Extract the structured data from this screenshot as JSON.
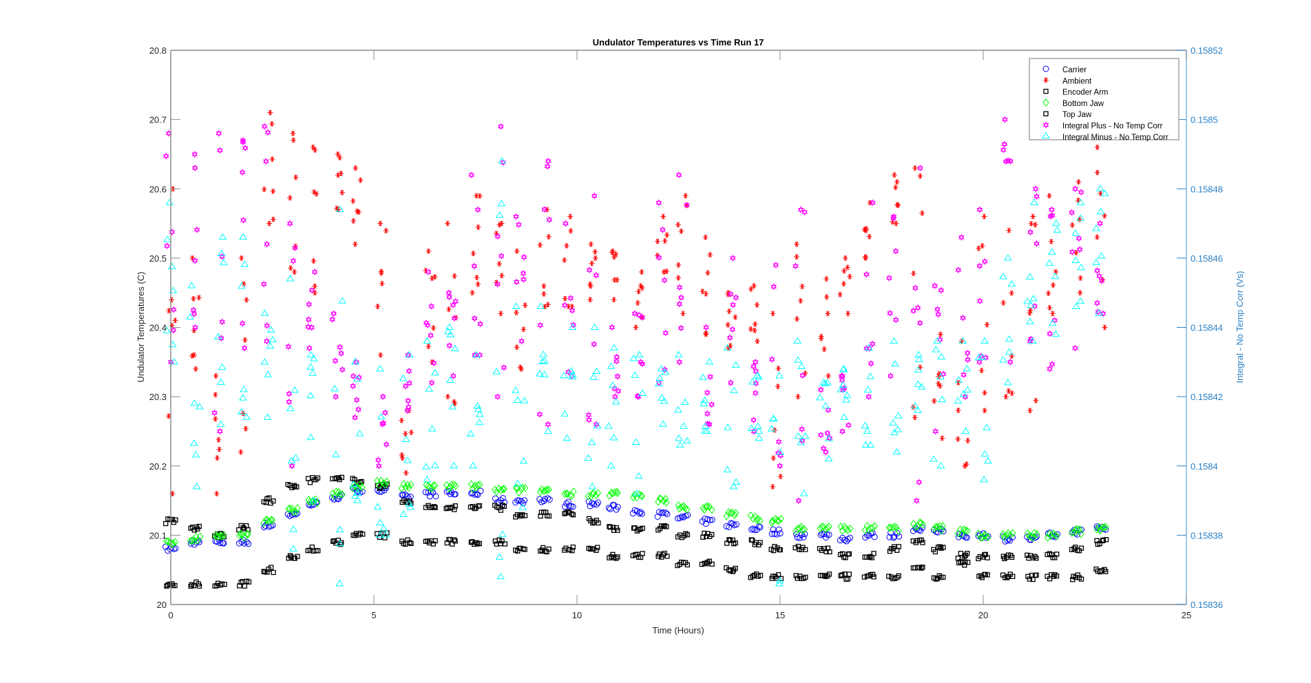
{
  "chart_data": {
    "type": "scatter",
    "title": "Undulator Temperatures vs Time Run 17",
    "xlabel": "Time (Hours)",
    "ylabel": "Undulator Temperatures (C)",
    "ylabel_right": "Integral -  No Temp Corr (Vs)",
    "xlim": [
      0,
      25
    ],
    "ylim": [
      20,
      20.8
    ],
    "ylim_right": [
      0.15836,
      0.15852
    ],
    "xticks": [
      "0",
      "5",
      "10",
      "15",
      "20",
      "25"
    ],
    "yticks": [
      "20",
      "20.1",
      "20.2",
      "20.3",
      "20.4",
      "20.5",
      "20.6",
      "20.7",
      "20.8"
    ],
    "yticks_right": [
      "0.15836",
      "0.15838",
      "0.1584",
      "0.15842",
      "0.15844",
      "0.15846",
      "0.15848",
      "0.1585",
      "0.15852"
    ],
    "grid": false,
    "legend_position": "top-right",
    "colors": {
      "carrier": "#0000ff",
      "ambient": "#ff0000",
      "encoder": "#000000",
      "bottom": "#00ff00",
      "top": "#000000",
      "plus": "#ff00ff",
      "minus": "#00ffff",
      "right_axis": "#2b7fc2"
    },
    "x": [
      0,
      0.6,
      1.2,
      1.8,
      2.4,
      3.0,
      3.5,
      4.1,
      4.6,
      5.2,
      5.8,
      6.4,
      6.9,
      7.5,
      8.1,
      8.6,
      9.2,
      9.8,
      10.4,
      10.9,
      11.5,
      12.1,
      12.6,
      13.2,
      13.8,
      14.4,
      14.9,
      15.5,
      16.1,
      16.6,
      17.2,
      17.8,
      18.4,
      18.9,
      19.5,
      20.0,
      20.6,
      21.2,
      21.7,
      22.3,
      22.9
    ],
    "series": [
      {
        "name": "Carrier",
        "axis": "left",
        "marker": "circle",
        "values": [
          20.08,
          20.09,
          20.09,
          20.09,
          20.115,
          20.13,
          20.145,
          20.155,
          20.165,
          20.165,
          20.155,
          20.16,
          20.16,
          20.16,
          20.15,
          20.15,
          20.15,
          20.145,
          20.145,
          20.14,
          20.135,
          20.13,
          20.125,
          20.12,
          20.115,
          20.11,
          20.105,
          20.1,
          20.1,
          20.095,
          20.1,
          20.1,
          20.11,
          20.105,
          20.1,
          20.1,
          20.095,
          20.095,
          20.1,
          20.105,
          20.11
        ]
      },
      {
        "name": "Ambient",
        "axis": "left",
        "marker": "star",
        "ranges": [
          [
            20.16,
            20.6
          ],
          [
            20.34,
            20.5
          ],
          [
            20.16,
            20.33
          ],
          [
            20.22,
            20.5
          ],
          [
            20.55,
            20.71
          ],
          [
            20.48,
            20.68
          ],
          [
            20.45,
            20.66
          ],
          [
            20.57,
            20.65
          ],
          [
            20.52,
            20.63
          ],
          [
            20.36,
            20.55
          ],
          [
            20.19,
            20.28
          ],
          [
            20.35,
            20.51
          ],
          [
            20.29,
            20.55
          ],
          [
            20.45,
            20.59
          ],
          [
            20.42,
            20.55
          ],
          [
            20.34,
            20.51
          ],
          [
            20.43,
            20.57
          ],
          [
            20.43,
            20.56
          ],
          [
            20.44,
            20.52
          ],
          [
            20.44,
            20.51
          ],
          [
            20.4,
            20.48
          ],
          [
            20.48,
            20.56
          ],
          [
            20.42,
            20.59
          ],
          [
            20.39,
            20.53
          ],
          [
            20.37,
            20.45
          ],
          [
            20.38,
            20.46
          ],
          [
            20.17,
            20.42
          ],
          [
            20.3,
            20.52
          ],
          [
            20.33,
            20.47
          ],
          [
            20.42,
            20.5
          ],
          [
            20.5,
            20.58
          ],
          [
            20.55,
            20.62
          ],
          [
            20.27,
            20.63
          ],
          [
            20.24,
            20.39
          ],
          [
            20.2,
            20.38
          ],
          [
            20.28,
            20.56
          ],
          [
            20.3,
            20.54
          ],
          [
            20.28,
            20.56
          ],
          [
            20.42,
            20.59
          ],
          [
            20.45,
            20.61
          ],
          [
            20.4,
            20.66
          ]
        ]
      },
      {
        "name": "Encoder Arm",
        "axis": "left",
        "marker": "square",
        "values": [
          20.12,
          20.11,
          20.1,
          20.11,
          20.15,
          20.17,
          20.18,
          20.18,
          20.18,
          20.17,
          20.15,
          20.14,
          20.14,
          20.14,
          20.14,
          20.13,
          20.13,
          20.13,
          20.12,
          20.11,
          20.11,
          20.11,
          20.1,
          20.1,
          20.09,
          20.09,
          20.08,
          20.08,
          20.08,
          20.07,
          20.07,
          20.08,
          20.09,
          20.08,
          20.07,
          20.07,
          20.07,
          20.07,
          20.07,
          20.08,
          20.09
        ]
      },
      {
        "name": "Bottom Jaw",
        "axis": "left",
        "marker": "diamond",
        "values": [
          20.09,
          20.095,
          20.1,
          20.1,
          20.12,
          20.135,
          20.15,
          20.16,
          20.17,
          20.175,
          20.17,
          20.17,
          20.17,
          20.17,
          20.165,
          20.165,
          20.165,
          20.16,
          20.16,
          20.16,
          20.155,
          20.15,
          20.14,
          20.14,
          20.13,
          20.125,
          20.12,
          20.11,
          20.11,
          20.11,
          20.11,
          20.11,
          20.115,
          20.11,
          20.105,
          20.1,
          20.1,
          20.1,
          20.1,
          20.105,
          20.11
        ]
      },
      {
        "name": "Top Jaw",
        "axis": "left",
        "marker": "square",
        "values": [
          20.03,
          20.03,
          20.03,
          20.03,
          20.05,
          20.07,
          20.08,
          20.09,
          20.1,
          20.1,
          20.09,
          20.09,
          20.09,
          20.09,
          20.09,
          20.08,
          20.08,
          20.08,
          20.08,
          20.07,
          20.07,
          20.07,
          20.06,
          20.06,
          20.05,
          20.04,
          20.04,
          20.04,
          20.04,
          20.04,
          20.04,
          20.04,
          20.05,
          20.04,
          20.06,
          20.04,
          20.04,
          20.04,
          20.04,
          20.04,
          20.05
        ]
      },
      {
        "name": "Integral Plus -  No Temp Corr",
        "axis": "right",
        "marker": "hexagram",
        "ranges": [
          [
            0.15843,
            0.158496
          ],
          [
            0.15844,
            0.15849
          ],
          [
            0.15841,
            0.158496
          ],
          [
            0.158434,
            0.158494
          ],
          [
            0.158436,
            0.158498
          ],
          [
            0.1584,
            0.15847
          ],
          [
            0.158434,
            0.158456
          ],
          [
            0.15842,
            0.158444
          ],
          [
            0.158414,
            0.15843
          ],
          [
            0.1584,
            0.15842
          ],
          [
            0.158416,
            0.158432
          ],
          [
            0.158424,
            0.158456
          ],
          [
            0.158426,
            0.15845
          ],
          [
            0.158432,
            0.158484
          ],
          [
            0.15842,
            0.158498
          ],
          [
            0.158436,
            0.158472
          ],
          [
            0.158412,
            0.158488
          ],
          [
            0.158426,
            0.15847
          ],
          [
            0.158412,
            0.158478
          ],
          [
            0.15842,
            0.15844
          ],
          [
            0.15842,
            0.158444
          ],
          [
            0.158424,
            0.158476
          ],
          [
            0.15843,
            0.158484
          ],
          [
            0.158412,
            0.15844
          ],
          [
            0.158424,
            0.15846
          ],
          [
            0.15841,
            0.15843
          ],
          [
            0.1584,
            0.158458
          ],
          [
            0.15839,
            0.158474
          ],
          [
            0.158404,
            0.158422
          ],
          [
            0.15841,
            0.158426
          ],
          [
            0.15842,
            0.158476
          ],
          [
            0.158426,
            0.158472
          ],
          [
            0.15839,
            0.158486
          ],
          [
            0.15841,
            0.158452
          ],
          [
            0.15842,
            0.158466
          ],
          [
            0.15843,
            0.158474
          ],
          [
            0.15843,
            0.1585
          ],
          [
            0.158436,
            0.15848
          ],
          [
            0.158428,
            0.158474
          ],
          [
            0.158434,
            0.15848
          ],
          [
            0.158444,
            0.15847
          ]
        ]
      },
      {
        "name": "Integral Minus -  No Temp Corr",
        "axis": "right",
        "marker": "triangle",
        "ranges": [
          [
            0.15843,
            0.158476
          ],
          [
            0.158394,
            0.158452
          ],
          [
            0.158412,
            0.158466
          ],
          [
            0.158414,
            0.158466
          ],
          [
            0.158414,
            0.158444
          ],
          [
            0.158376,
            0.158454
          ],
          [
            0.15839,
            0.158432
          ],
          [
            0.158366,
            0.158474
          ],
          [
            0.15839,
            0.15843
          ],
          [
            0.15838,
            0.158428
          ],
          [
            0.158386,
            0.158432
          ],
          [
            0.158396,
            0.158436
          ],
          [
            0.1584,
            0.15844
          ],
          [
            0.1584,
            0.158432
          ],
          [
            0.158368,
            0.158488
          ],
          [
            0.158388,
            0.158446
          ],
          [
            0.15841,
            0.158446
          ],
          [
            0.158408,
            0.15844
          ],
          [
            0.158394,
            0.15844
          ],
          [
            0.1584,
            0.158434
          ],
          [
            0.158392,
            0.158432
          ],
          [
            0.158412,
            0.158428
          ],
          [
            0.158406,
            0.158432
          ],
          [
            0.15841,
            0.15843
          ],
          [
            0.158394,
            0.158434
          ],
          [
            0.158408,
            0.158426
          ],
          [
            0.158366,
            0.158426
          ],
          [
            0.158392,
            0.158436
          ],
          [
            0.158402,
            0.158424
          ],
          [
            0.158414,
            0.158428
          ],
          [
            0.158406,
            0.158434
          ],
          [
            0.158404,
            0.158436
          ],
          [
            0.158416,
            0.158432
          ],
          [
            0.1584,
            0.158436
          ],
          [
            0.15841,
            0.158436
          ],
          [
            0.158396,
            0.158436
          ],
          [
            0.158424,
            0.15846
          ],
          [
            0.158436,
            0.158476
          ],
          [
            0.158438,
            0.15847
          ],
          [
            0.158446,
            0.158476
          ],
          [
            0.158444,
            0.15848
          ]
        ]
      }
    ]
  }
}
